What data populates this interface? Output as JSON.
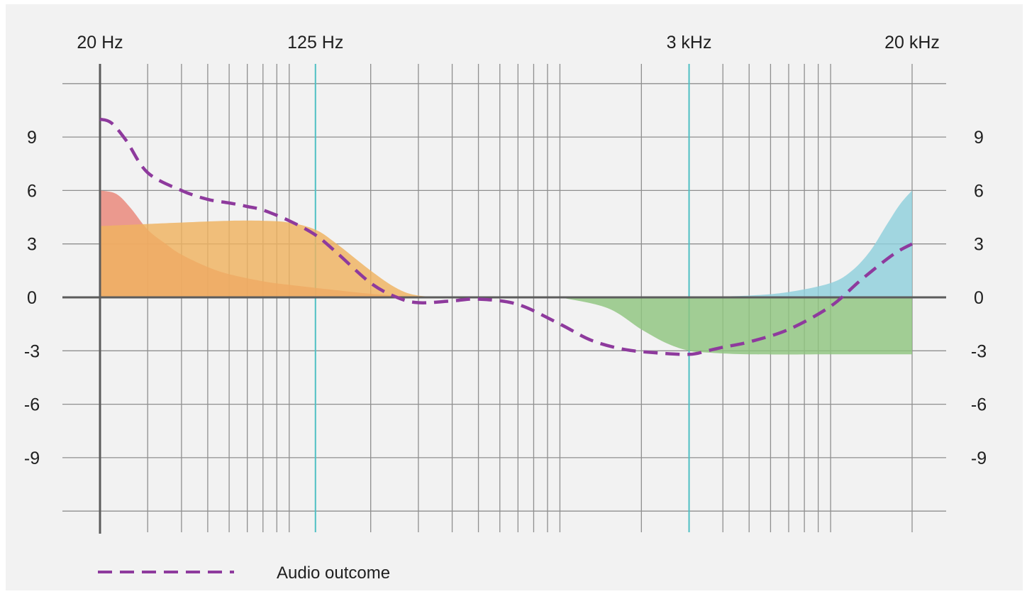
{
  "chart_data": {
    "type": "area",
    "title": "",
    "xlabel": "",
    "ylabel": "",
    "x_scale": "log",
    "x_unit": "Hz",
    "xlim": [
      20,
      20000
    ],
    "ylim": [
      -12,
      12
    ],
    "x_tick_labels": [
      {
        "freq": 20,
        "label": "20 Hz"
      },
      {
        "freq": 125,
        "label": "125 Hz"
      },
      {
        "freq": 3000,
        "label": "3 kHz"
      },
      {
        "freq": 20000,
        "label": "20 kHz"
      }
    ],
    "y_ticks": [
      9,
      6,
      3,
      0,
      -3,
      -6,
      -9
    ],
    "y_tick_labels": [
      "9",
      "6",
      "3",
      "0",
      "-3",
      "-6",
      "-9"
    ],
    "highlight_frequencies": [
      125,
      3000
    ],
    "grid": true,
    "series": [
      {
        "color": "#e98578",
        "x": [
          20,
          23,
          26,
          30,
          35,
          40,
          50,
          60,
          80,
          100,
          150,
          200,
          300
        ],
        "y": [
          6,
          5.8,
          5,
          3.8,
          3.0,
          2.4,
          1.7,
          1.3,
          0.9,
          0.7,
          0.4,
          0.2,
          0
        ]
      },
      {
        "color": "#efb25f",
        "x": [
          20,
          40,
          60,
          80,
          100,
          125,
          150,
          200,
          250,
          300,
          400
        ],
        "y": [
          4,
          4.2,
          4.3,
          4.3,
          4.2,
          3.8,
          3.0,
          1.5,
          0.5,
          0.1,
          0
        ]
      },
      {
        "color": "#8fc47f",
        "x": [
          1000,
          1500,
          2000,
          2500,
          3000,
          3500,
          5000,
          10000,
          20000
        ],
        "y": [
          0,
          -0.6,
          -1.8,
          -2.6,
          -3.0,
          -3.1,
          -3.2,
          -3.2,
          -3.2
        ]
      },
      {
        "color": "#8fcfdc",
        "x": [
          3000,
          5000,
          7000,
          10000,
          12000,
          14000,
          16000,
          18000,
          20000
        ],
        "y": [
          0,
          0.1,
          0.3,
          0.8,
          1.5,
          2.6,
          4.0,
          5.2,
          6
        ]
      },
      {
        "name": "Audio outcome",
        "style": "dashed",
        "color": "#8e3a9d",
        "x": [
          20,
          22,
          25,
          30,
          40,
          50,
          60,
          70,
          80,
          100,
          125,
          150,
          200,
          250,
          300,
          400,
          500,
          700,
          1000,
          1300,
          1700,
          2200,
          3000,
          3500,
          4000,
          5000,
          7000,
          10000,
          13000,
          17000,
          20000
        ],
        "y": [
          10,
          9.8,
          8.8,
          7.0,
          6.0,
          5.5,
          5.3,
          5.1,
          4.9,
          4.3,
          3.5,
          2.5,
          0.8,
          0,
          -0.3,
          -0.2,
          -0.1,
          -0.4,
          -1.5,
          -2.4,
          -2.9,
          -3.1,
          -3.2,
          -3.0,
          -2.8,
          -2.5,
          -1.8,
          -0.5,
          1.0,
          2.4,
          3.0
        ]
      }
    ],
    "legend": {
      "position": "bottom-left",
      "label": "Audio outcome"
    }
  }
}
